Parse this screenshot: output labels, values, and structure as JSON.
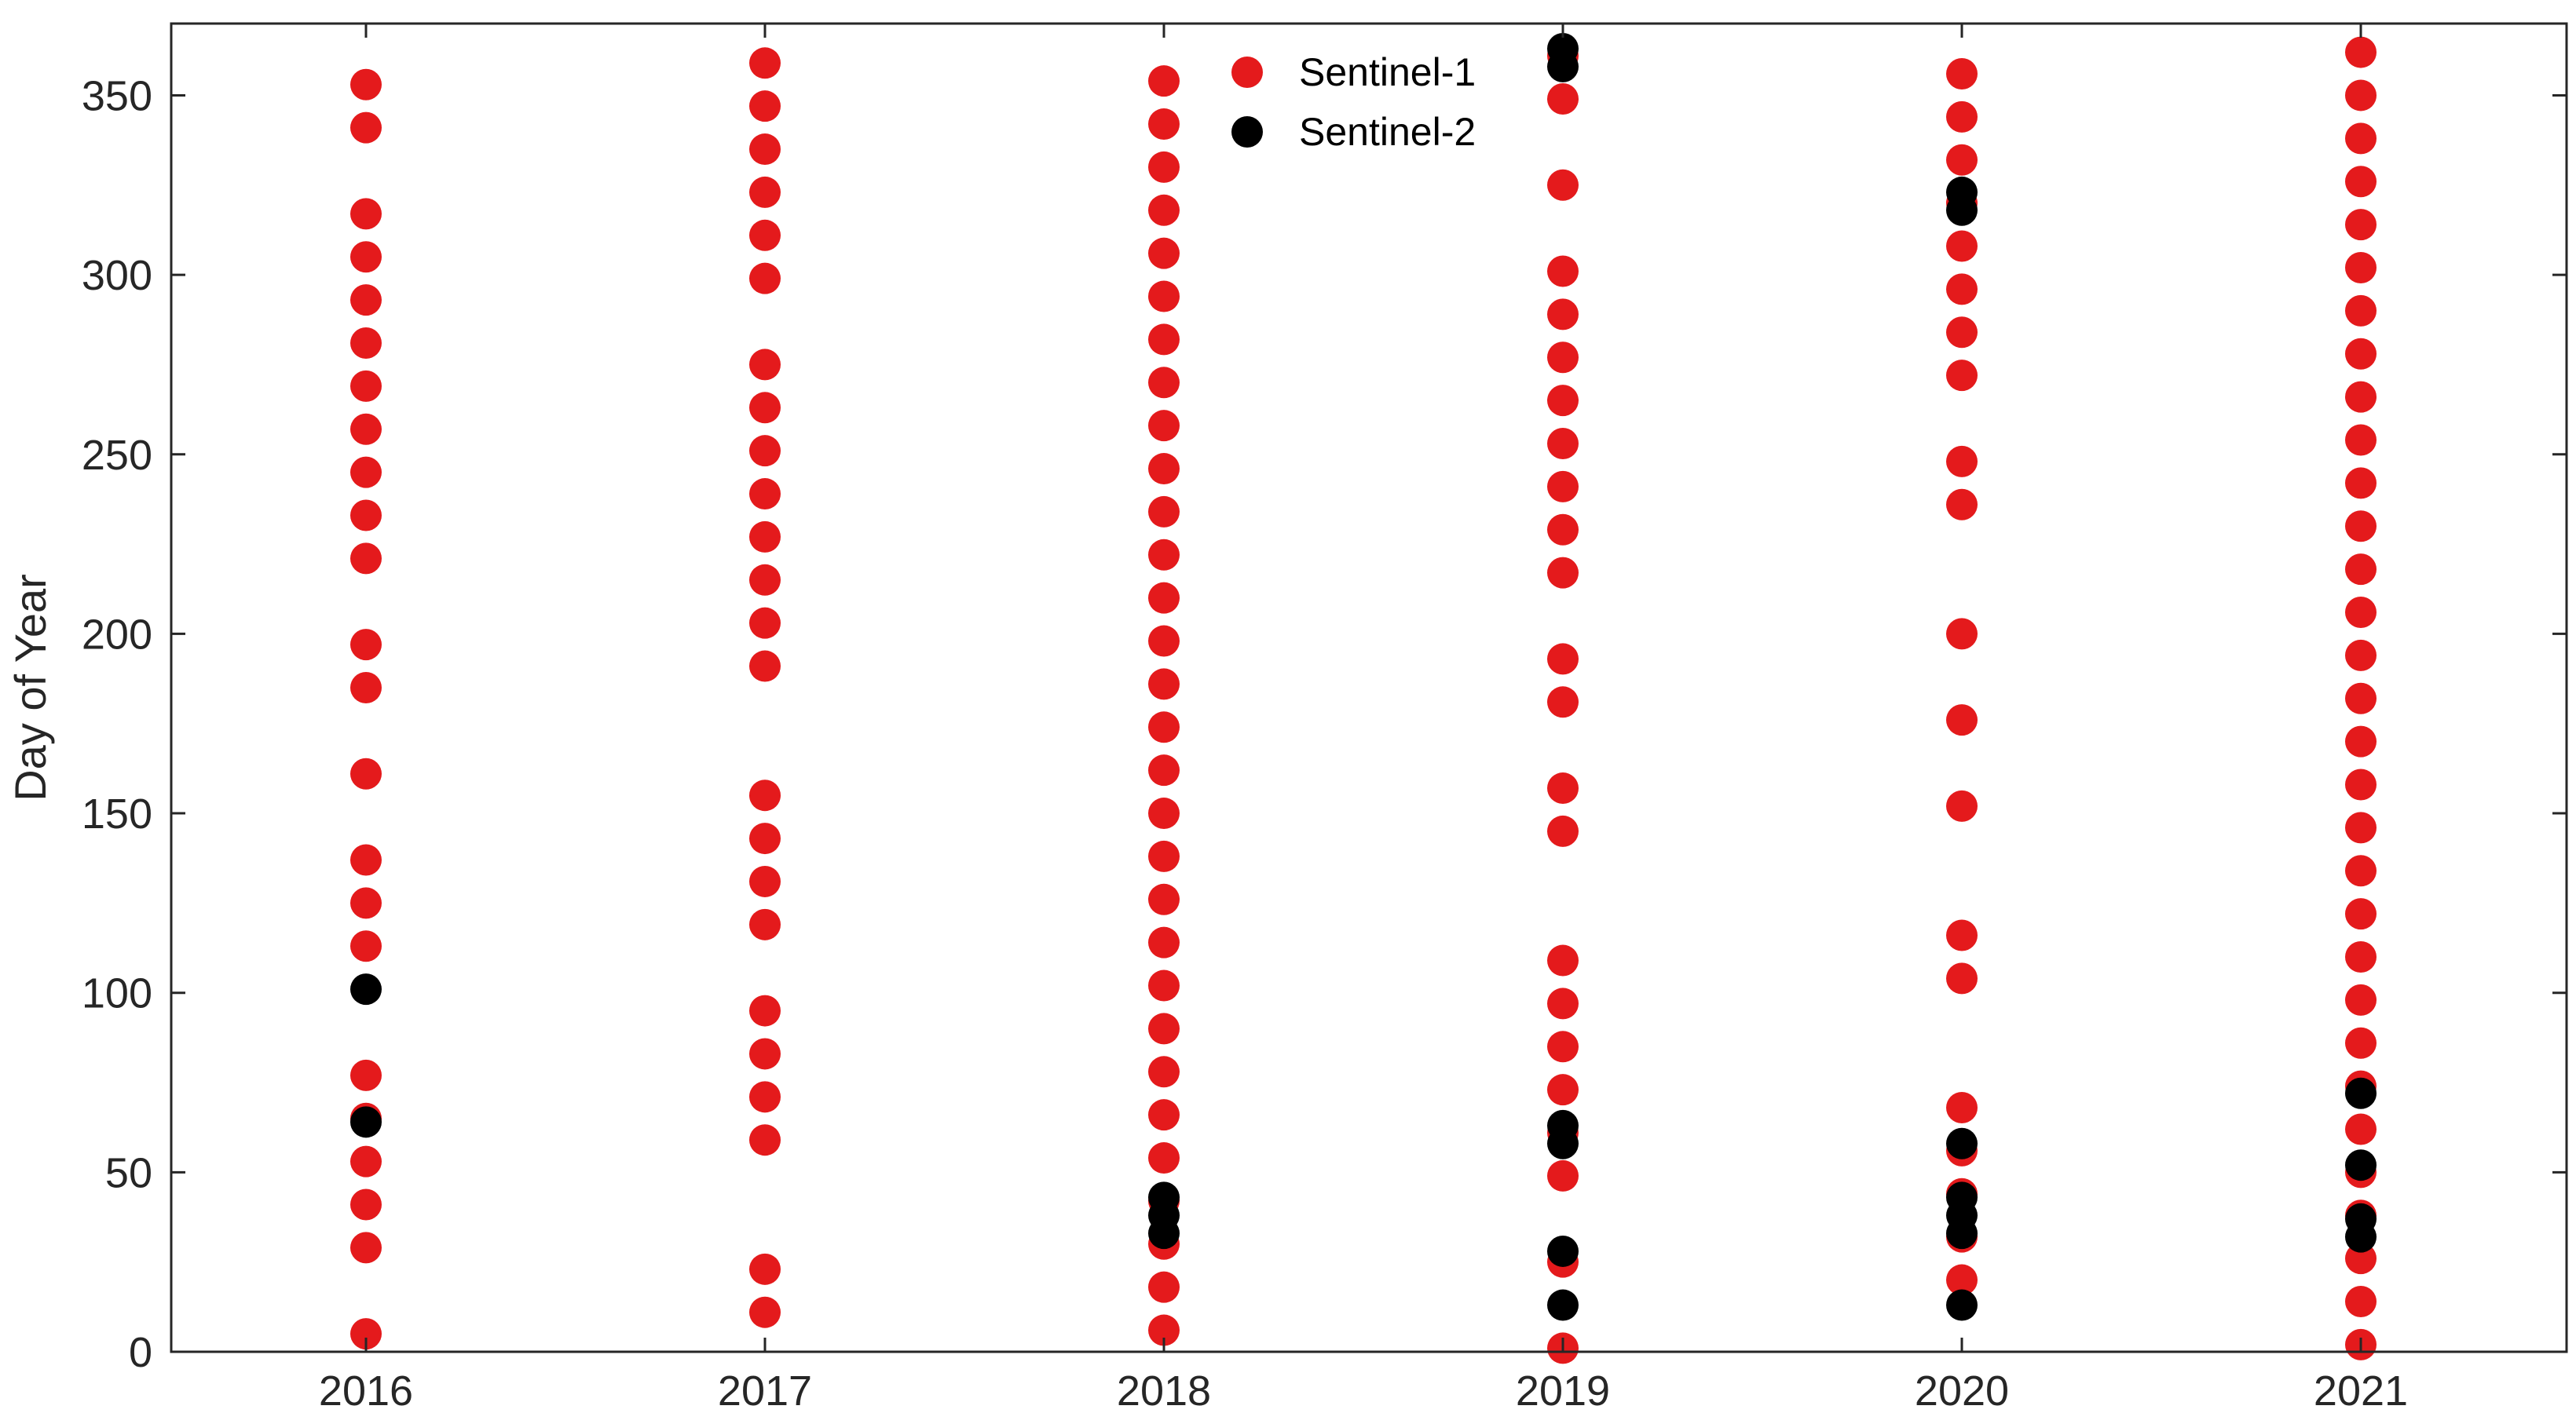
{
  "chart_data": {
    "type": "scatter",
    "title": "",
    "xlabel": "",
    "ylabel": "Day of Year",
    "categories": [
      "2016",
      "2017",
      "2018",
      "2019",
      "2020",
      "2021"
    ],
    "ylim": [
      0,
      370
    ],
    "yticks": [
      0,
      50,
      100,
      150,
      200,
      250,
      300,
      350
    ],
    "grid": false,
    "legend_position": "top-center",
    "series": [
      {
        "name": "Sentinel-1",
        "color": "#e41a1c",
        "points": {
          "2016": [
            5,
            29,
            41,
            53,
            65,
            77,
            113,
            125,
            137,
            161,
            185,
            197,
            221,
            233,
            245,
            257,
            269,
            281,
            293,
            305,
            317,
            341,
            353
          ],
          "2017": [
            11,
            23,
            59,
            71,
            83,
            95,
            119,
            131,
            143,
            155,
            191,
            203,
            215,
            227,
            239,
            251,
            263,
            275,
            299,
            311,
            323,
            335,
            347,
            359
          ],
          "2018": [
            6,
            18,
            30,
            42,
            54,
            66,
            78,
            90,
            102,
            114,
            126,
            138,
            150,
            162,
            174,
            186,
            198,
            210,
            222,
            234,
            246,
            258,
            270,
            282,
            294,
            306,
            318,
            330,
            342,
            354
          ],
          "2019": [
            1,
            25,
            49,
            61,
            73,
            85,
            97,
            109,
            145,
            157,
            181,
            193,
            217,
            229,
            241,
            253,
            265,
            277,
            289,
            301,
            325,
            349,
            361
          ],
          "2020": [
            20,
            32,
            44,
            56,
            68,
            104,
            116,
            152,
            176,
            200,
            236,
            248,
            272,
            284,
            296,
            308,
            320,
            332,
            344,
            356
          ],
          "2021": [
            2,
            14,
            26,
            38,
            50,
            62,
            74,
            86,
            98,
            110,
            122,
            134,
            146,
            158,
            170,
            182,
            194,
            206,
            218,
            230,
            242,
            254,
            266,
            278,
            290,
            302,
            314,
            326,
            338,
            350,
            362
          ]
        }
      },
      {
        "name": "Sentinel-2",
        "color": "#000000",
        "points": {
          "2016": [
            64,
            101
          ],
          "2017": [],
          "2018": [
            33,
            38,
            43
          ],
          "2019": [
            13,
            28,
            58,
            63,
            358,
            363
          ],
          "2020": [
            13,
            33,
            38,
            43,
            58,
            318,
            323
          ],
          "2021": [
            32,
            37,
            52,
            72
          ]
        }
      }
    ]
  }
}
